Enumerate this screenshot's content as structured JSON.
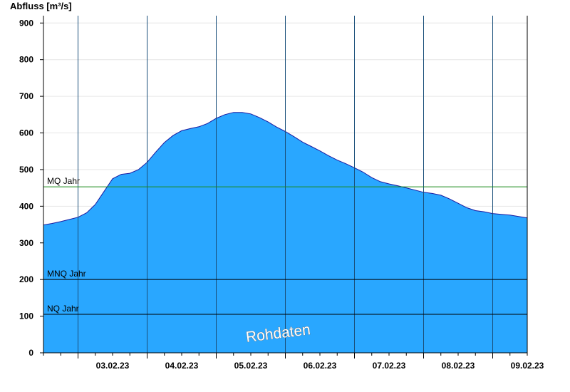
{
  "chart_data": {
    "type": "area",
    "ylabel": "Abfluss [m³/s]",
    "ylim": [
      0,
      920
    ],
    "yticks": [
      0,
      100,
      200,
      300,
      400,
      500,
      600,
      700,
      800,
      900
    ],
    "xlim_days": [
      "02.02.23 12:00",
      "09.02.23 12:00"
    ],
    "day_boundaries": [
      "03.02.23",
      "04.02.23",
      "05.02.23",
      "06.02.23",
      "07.02.23",
      "08.02.23",
      "09.02.23"
    ],
    "xtick_labels": [
      "03.02.23",
      "04.02.23",
      "05.02.23",
      "06.02.23",
      "07.02.23",
      "08.02.23",
      "09.02.23"
    ],
    "grid": true,
    "series": [
      {
        "x": [
          "02.02.23 12:00",
          "02.02.23 15:00",
          "02.02.23 18:00",
          "02.02.23 21:00",
          "03.02.23 00:00",
          "03.02.23 03:00",
          "03.02.23 06:00",
          "03.02.23 09:00",
          "03.02.23 12:00",
          "03.02.23 15:00",
          "03.02.23 18:00",
          "03.02.23 21:00",
          "04.02.23 00:00",
          "04.02.23 03:00",
          "04.02.23 06:00",
          "04.02.23 09:00",
          "04.02.23 12:00",
          "04.02.23 15:00",
          "04.02.23 18:00",
          "04.02.23 21:00",
          "05.02.23 00:00",
          "05.02.23 03:00",
          "05.02.23 06:00",
          "05.02.23 09:00",
          "05.02.23 12:00",
          "05.02.23 15:00",
          "05.02.23 18:00",
          "05.02.23 21:00",
          "06.02.23 00:00",
          "06.02.23 03:00",
          "06.02.23 06:00",
          "06.02.23 09:00",
          "06.02.23 12:00",
          "06.02.23 15:00",
          "06.02.23 18:00",
          "06.02.23 21:00",
          "07.02.23 00:00",
          "07.02.23 03:00",
          "07.02.23 06:00",
          "07.02.23 09:00",
          "07.02.23 12:00",
          "07.02.23 15:00",
          "07.02.23 18:00",
          "07.02.23 21:00",
          "08.02.23 00:00",
          "08.02.23 03:00",
          "08.02.23 06:00",
          "08.02.23 09:00",
          "08.02.23 12:00",
          "08.02.23 15:00",
          "08.02.23 18:00",
          "08.02.23 21:00",
          "09.02.23 00:00",
          "09.02.23 03:00",
          "09.02.23 06:00",
          "09.02.23 09:00",
          "09.02.23 12:00"
        ],
        "y": [
          349,
          353,
          358,
          364,
          370,
          382,
          405,
          440,
          475,
          487,
          490,
          500,
          520,
          548,
          574,
          593,
          606,
          612,
          617,
          626,
          640,
          650,
          656,
          656,
          652,
          642,
          630,
          616,
          604,
          590,
          575,
          563,
          551,
          538,
          526,
          516,
          505,
          493,
          478,
          467,
          461,
          456,
          450,
          444,
          438,
          435,
          430,
          420,
          408,
          396,
          388,
          385,
          380,
          378,
          376,
          372,
          368
        ]
      }
    ],
    "reference_lines": [
      {
        "label": "MQ Jahr",
        "value": 453,
        "color": "#1a8a1a"
      },
      {
        "label": "MNQ Jahr",
        "value": 200,
        "color": "#000000"
      },
      {
        "label": "NQ Jahr",
        "value": 105,
        "color": "#000000"
      }
    ],
    "colors": {
      "fill": "#29a7ff",
      "outline": "#1a1aa0",
      "day_line": "#1a4f7a",
      "grid": "#e6e6e6"
    },
    "watermark": "Rohdaten"
  }
}
